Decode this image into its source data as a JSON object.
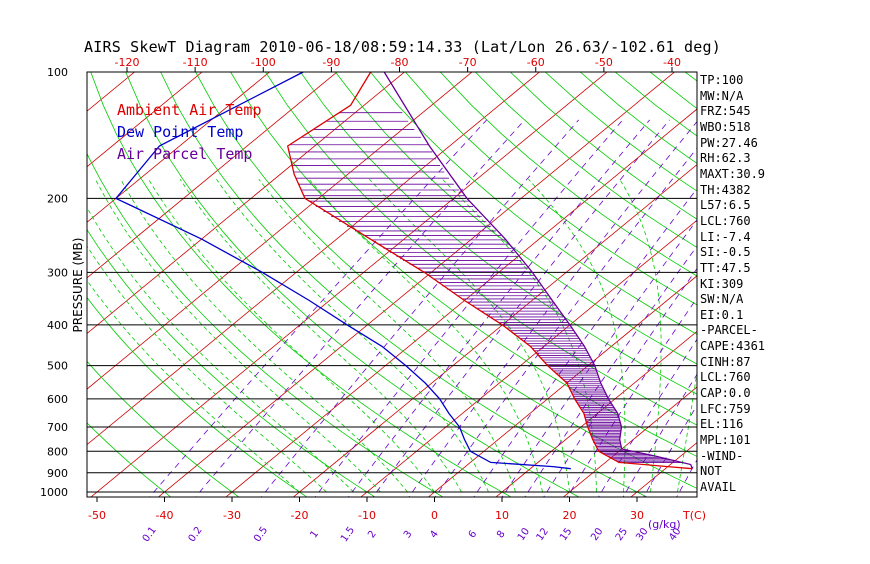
{
  "chart_data": {
    "type": "skewt",
    "title": "AIRS SkewT Diagram 2010-06-18/08:59:14.33 (Lat/Lon 26.63/-102.61 deg)",
    "ylabel": "PRESSURE (MB)",
    "bottom_axis_unit": "T(C)",
    "mixing_ratio_unit": "(g/kg)",
    "top_temperature_ticks": [
      "-120",
      "-110",
      "-100",
      "-90",
      "-80",
      "-70",
      "-60",
      "-50",
      "-40"
    ],
    "bottom_temperature_ticks": [
      "-50",
      "-40",
      "-30",
      "-20",
      "-10",
      "0",
      "10",
      "20",
      "30"
    ],
    "pressure_ticks": [
      {
        "label": "100",
        "p": 100
      },
      {
        "label": "200",
        "p": 200
      },
      {
        "label": "300",
        "p": 300
      },
      {
        "label": "400",
        "p": 400
      },
      {
        "label": "500",
        "p": 500
      },
      {
        "label": "600",
        "p": 600
      },
      {
        "label": "700",
        "p": 700
      },
      {
        "label": "800",
        "p": 800
      },
      {
        "label": "900",
        "p": 900
      },
      {
        "label": "1000",
        "p": 1000
      }
    ],
    "mixing_ratio_labels": [
      "0.1",
      "0.2",
      "0.5",
      "1",
      "1.5",
      "2",
      "3",
      "4",
      "6",
      "8",
      "10",
      "12",
      "15",
      "20",
      "25",
      "30",
      "40"
    ],
    "mixing_ratio_values": [
      0.1,
      0.2,
      0.5,
      1,
      1.5,
      2,
      3,
      4,
      6,
      8,
      10,
      12,
      15,
      20,
      25,
      30,
      40
    ],
    "legend": [
      {
        "name": "Ambient Air Temp",
        "color": "#dd0000"
      },
      {
        "name": "Dew Point Temp",
        "color": "#0000cc"
      },
      {
        "name": "Air Parcel Temp",
        "color": "#660099"
      }
    ],
    "series": [
      {
        "name": "Ambient Air Temp",
        "color": "#dd0000",
        "points": [
          [
            100,
            -85
          ],
          [
            120,
            -82
          ],
          [
            150,
            -84
          ],
          [
            175,
            -78
          ],
          [
            200,
            -72
          ],
          [
            250,
            -55
          ],
          [
            300,
            -41
          ],
          [
            350,
            -30
          ],
          [
            400,
            -20
          ],
          [
            450,
            -12
          ],
          [
            500,
            -6
          ],
          [
            550,
            0
          ],
          [
            600,
            4
          ],
          [
            650,
            8
          ],
          [
            700,
            11
          ],
          [
            750,
            14
          ],
          [
            800,
            17
          ],
          [
            850,
            22
          ],
          [
            870,
            30
          ],
          [
            880,
            34
          ]
        ]
      },
      {
        "name": "Dew Point Temp",
        "color": "#0000cc",
        "points": [
          [
            100,
            -95
          ],
          [
            150,
            -103
          ],
          [
            200,
            -100
          ],
          [
            250,
            -80
          ],
          [
            300,
            -65
          ],
          [
            350,
            -53
          ],
          [
            400,
            -43
          ],
          [
            450,
            -34
          ],
          [
            500,
            -27
          ],
          [
            550,
            -21
          ],
          [
            600,
            -16
          ],
          [
            650,
            -12
          ],
          [
            700,
            -8
          ],
          [
            750,
            -5
          ],
          [
            800,
            -2
          ],
          [
            850,
            3
          ],
          [
            870,
            13
          ],
          [
            880,
            16
          ]
        ]
      },
      {
        "name": "Air Parcel Temp",
        "color": "#660099",
        "points": [
          [
            100,
            -83
          ],
          [
            150,
            -63
          ],
          [
            200,
            -48
          ],
          [
            250,
            -35
          ],
          [
            300,
            -25
          ],
          [
            350,
            -17
          ],
          [
            400,
            -10
          ],
          [
            450,
            -4
          ],
          [
            500,
            1
          ],
          [
            550,
            5
          ],
          [
            600,
            9
          ],
          [
            650,
            13
          ],
          [
            700,
            16
          ],
          [
            750,
            18
          ],
          [
            790,
            20
          ],
          [
            820,
            26
          ],
          [
            860,
            33
          ],
          [
            880,
            34
          ]
        ]
      }
    ]
  },
  "indices": [
    "TP:100",
    "MW:N/A",
    "FRZ:545",
    "WBO:518",
    "PW:27.46",
    "RH:62.3",
    "MAXT:30.9",
    "TH:4382",
    "L57:6.5",
    "LCL:760",
    "LI:-7.4",
    "SI:-0.5",
    "TT:47.5",
    "KI:309",
    "SW:N/A",
    "EI:0.1",
    "-PARCEL-",
    "CAPE:4361",
    "CINH:87",
    "LCL:760",
    "CAP:0.0",
    "LFC:759",
    "EL:116",
    "MPL:101",
    "-WIND-",
    "NOT",
    "AVAIL"
  ],
  "colors": {
    "isotherm": "#cc0000",
    "dry_adiabat": "#00cc00",
    "moist_adiabat": "#00cc00",
    "mixing_ratio": "#6600cc",
    "hatch": "#660099"
  }
}
